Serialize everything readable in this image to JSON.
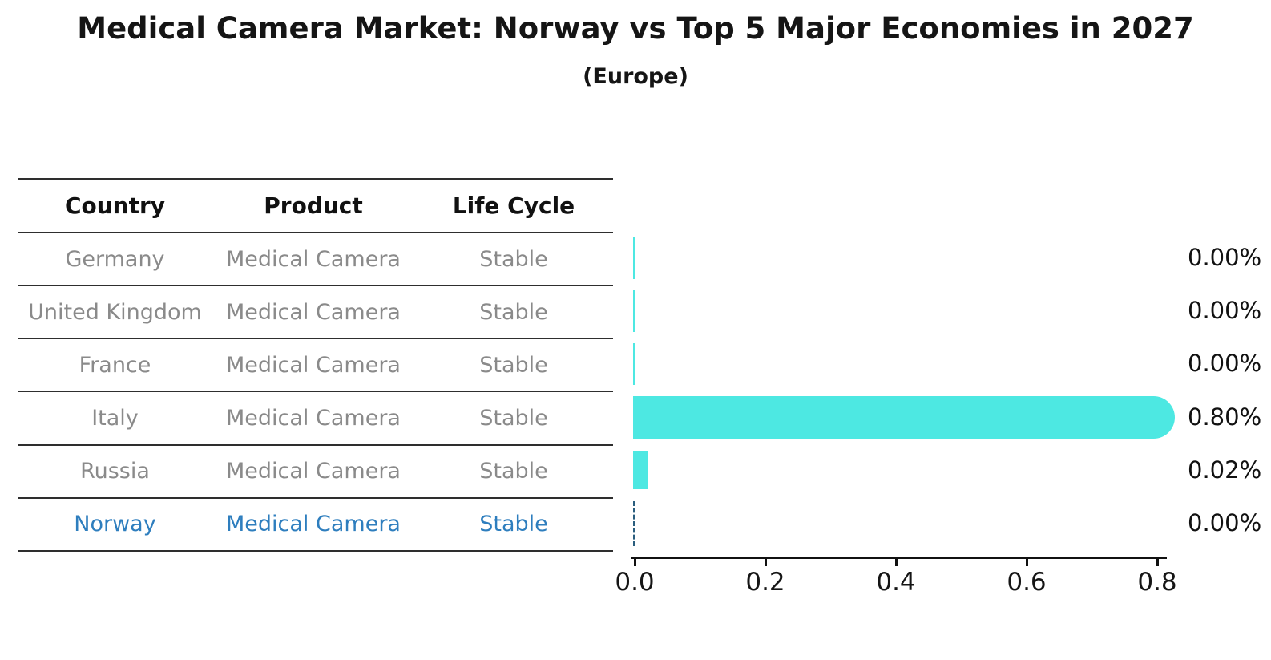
{
  "title": "Medical Camera Market: Norway vs Top 5 Major Economies in 2027",
  "subtitle": "(Europe)",
  "table": {
    "headers": [
      "Country",
      "Product",
      "Life Cycle"
    ],
    "rows": [
      {
        "country": "Germany",
        "product": "Medical Camera",
        "life_cycle": "Stable",
        "highlight": false
      },
      {
        "country": "United Kingdom",
        "product": "Medical Camera",
        "life_cycle": "Stable",
        "highlight": false
      },
      {
        "country": "France",
        "product": "Medical Camera",
        "life_cycle": "Stable",
        "highlight": false
      },
      {
        "country": "Italy",
        "product": "Medical Camera",
        "life_cycle": "Stable",
        "highlight": false
      },
      {
        "country": "Russia",
        "product": "Medical Camera",
        "life_cycle": "Stable",
        "highlight": false
      },
      {
        "country": "Norway",
        "product": "Medical Camera",
        "life_cycle": "Stable",
        "highlight": true
      }
    ]
  },
  "chart_data": {
    "type": "bar",
    "orientation": "horizontal",
    "categories": [
      "Germany",
      "United Kingdom",
      "France",
      "Italy",
      "Russia",
      "Norway"
    ],
    "values": [
      0.0,
      0.0,
      0.0,
      0.8,
      0.02,
      0.0
    ],
    "value_labels": [
      "0.00%",
      "0.00%",
      "0.00%",
      "0.80%",
      "0.02%",
      "0.00%"
    ],
    "xlim": [
      0.0,
      0.8
    ],
    "x_ticks": [
      "0.0",
      "0.2",
      "0.4",
      "0.6",
      "0.8"
    ],
    "grid": "off",
    "legend": "none",
    "bar_color": "#4DE8E2",
    "norway_bar_style": "dashed-outline",
    "norway_dash_color": "#2A5D7E",
    "highlight_text_color": "#2E7EBE"
  }
}
